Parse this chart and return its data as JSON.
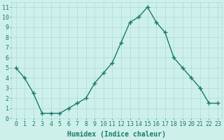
{
  "x": [
    0,
    1,
    2,
    3,
    4,
    5,
    6,
    7,
    8,
    9,
    10,
    11,
    12,
    13,
    14,
    15,
    16,
    17,
    18,
    19,
    20,
    21,
    22,
    23
  ],
  "y": [
    5,
    4,
    2.5,
    0.5,
    0.5,
    0.5,
    1.0,
    1.5,
    2.0,
    3.5,
    4.5,
    5.5,
    7.5,
    9.5,
    10.0,
    11.0,
    9.5,
    8.5,
    6.0,
    5.0,
    4.0,
    3.0,
    1.5,
    1.5
  ],
  "line_color": "#1a7a6e",
  "marker": "+",
  "marker_size": 4,
  "bg_color": "#cef0ea",
  "grid_color": "#aadadd",
  "xlabel": "Humidex (Indice chaleur)",
  "xlim": [
    -0.5,
    23.5
  ],
  "ylim": [
    0,
    11.5
  ],
  "yticks": [
    0,
    1,
    2,
    3,
    4,
    5,
    6,
    7,
    8,
    9,
    10,
    11
  ],
  "xticks": [
    0,
    1,
    2,
    3,
    4,
    5,
    6,
    7,
    8,
    9,
    10,
    11,
    12,
    13,
    14,
    15,
    16,
    17,
    18,
    19,
    20,
    21,
    22,
    23
  ],
  "xlabel_fontsize": 7,
  "tick_fontsize": 6,
  "line_width": 1.0,
  "axis_color": "#1a7a6e",
  "marker_edge_width": 1.0
}
